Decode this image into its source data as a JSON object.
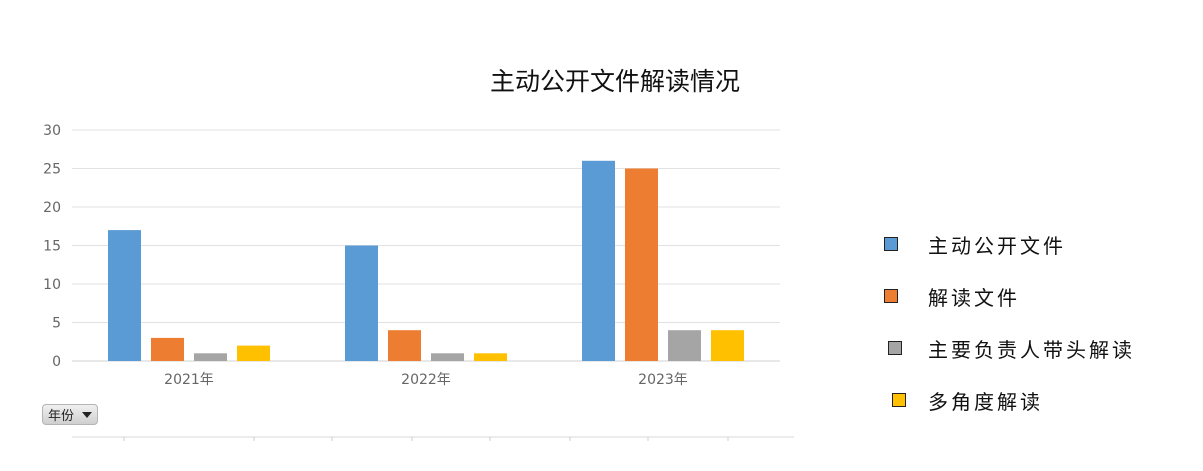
{
  "chart_data": {
    "type": "bar",
    "title": "主动公开文件解读情况",
    "categories": [
      "2021年",
      "2022年",
      "2023年"
    ],
    "series": [
      {
        "name": "主动公开文件",
        "values": [
          17,
          15,
          26
        ],
        "color": "#5b9bd5"
      },
      {
        "name": "解读文件",
        "values": [
          3,
          4,
          25
        ],
        "color": "#ed7d31"
      },
      {
        "name": "主要负责人带头解读",
        "values": [
          1,
          1,
          4
        ],
        "color": "#a5a5a5"
      },
      {
        "name": "多角度解读",
        "values": [
          2,
          1,
          4
        ],
        "color": "#ffc000"
      }
    ],
    "ylim": [
      0,
      30
    ],
    "yticks": [
      "0",
      "5",
      "10",
      "15",
      "20",
      "25",
      "30"
    ],
    "grid": true,
    "legend_position": "right"
  },
  "field_button": {
    "label": "年份",
    "icon": "dropdown-arrow-icon"
  }
}
